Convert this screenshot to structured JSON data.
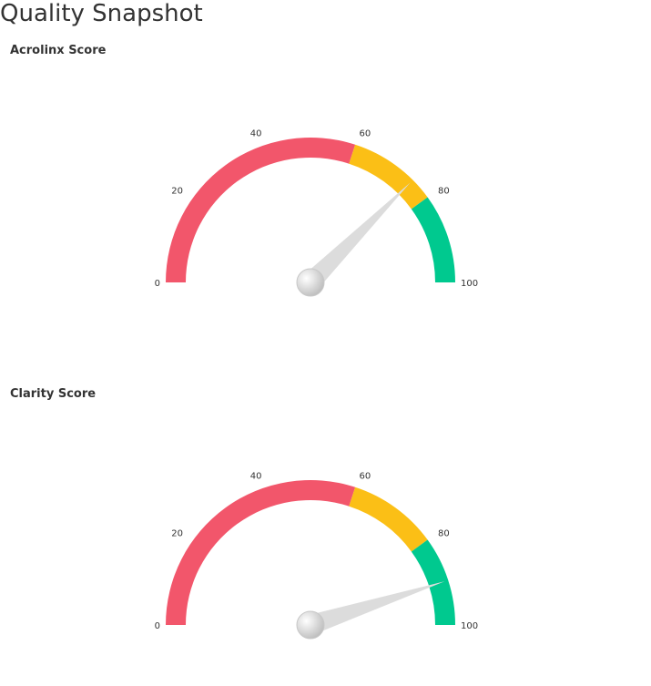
{
  "page": {
    "title": "Quality Snapshot"
  },
  "colors": {
    "low": "#f2566b",
    "mid": "#fbbf16",
    "high": "#00c98f",
    "needle": "#dcdcdc",
    "pivot": "#bdbdbd"
  },
  "chart_data": [
    {
      "type": "gauge",
      "title": "Acrolinx Score",
      "min": 0,
      "max": 100,
      "ticks": [
        "0",
        "20",
        "40",
        "60",
        "80",
        "100"
      ],
      "bands": [
        {
          "from": 0,
          "to": 60,
          "color": "#f2566b"
        },
        {
          "from": 60,
          "to": 80,
          "color": "#fbbf16"
        },
        {
          "from": 80,
          "to": 100,
          "color": "#00c98f"
        }
      ],
      "value": 75
    },
    {
      "type": "gauge",
      "title": "Clarity Score",
      "min": 0,
      "max": 100,
      "ticks": [
        "0",
        "20",
        "40",
        "60",
        "80",
        "100"
      ],
      "bands": [
        {
          "from": 0,
          "to": 60,
          "color": "#f2566b"
        },
        {
          "from": 60,
          "to": 80,
          "color": "#fbbf16"
        },
        {
          "from": 80,
          "to": 100,
          "color": "#00c98f"
        }
      ],
      "value": 90
    }
  ]
}
